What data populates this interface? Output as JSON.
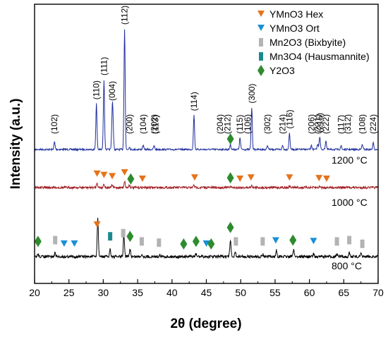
{
  "chart_data": {
    "type": "line",
    "xlabel": "2θ (degree)",
    "ylabel": "Intensity (a.u.)",
    "xlim": [
      20,
      70
    ],
    "x_ticks": [
      20,
      25,
      30,
      35,
      40,
      45,
      50,
      55,
      60,
      65,
      70
    ],
    "grid": false,
    "legend_position": "top-right",
    "legend": [
      {
        "name": "YMnO3 Hex",
        "marker": "down-triangle",
        "color": "#e5731a"
      },
      {
        "name": "YMnO3 Ort",
        "marker": "down-triangle",
        "color": "#1a8fd6"
      },
      {
        "name": "Mn2O3 (Bixbyite)",
        "marker": "rect",
        "color": "#b3b3b3"
      },
      {
        "name": "Mn3O4 (Hausmannite)",
        "marker": "rect",
        "color": "#1a8a8f"
      },
      {
        "name": "Y2O3",
        "marker": "diamond",
        "color": "#2e8b2e"
      }
    ],
    "series": [
      {
        "name": "1200 °C",
        "color": "#1f2f9e",
        "baseline": 0.0,
        "peaks": [
          [
            22.9,
            0.06
          ],
          [
            29.0,
            0.36
          ],
          [
            30.1,
            0.55
          ],
          [
            31.3,
            0.25
          ],
          [
            31.4,
            0.2
          ],
          [
            33.1,
            0.95
          ],
          [
            33.8,
            0.02
          ],
          [
            35.8,
            0.03
          ],
          [
            37.4,
            0.03
          ],
          [
            43.2,
            0.27
          ],
          [
            48.5,
            0.04
          ],
          [
            49.9,
            0.09
          ],
          [
            51.6,
            0.33
          ],
          [
            53.9,
            0.03
          ],
          [
            56.1,
            0.03
          ],
          [
            57.1,
            0.13
          ],
          [
            60.3,
            0.03
          ],
          [
            61.2,
            0.04
          ],
          [
            61.5,
            0.1
          ],
          [
            62.4,
            0.07
          ],
          [
            64.6,
            0.03
          ],
          [
            67.7,
            0.04
          ],
          [
            69.3,
            0.05
          ]
        ],
        "peak_labels": [
          {
            "x": 22.9,
            "label": "(102)"
          },
          {
            "x": 29.0,
            "label": "(110)"
          },
          {
            "x": 30.1,
            "label": "(111)"
          },
          {
            "x": 31.3,
            "label": "(004)"
          },
          {
            "x": 33.1,
            "label": "(112)"
          },
          {
            "x": 33.8,
            "label": "(200)"
          },
          {
            "x": 35.8,
            "label": "(104)"
          },
          {
            "x": 37.4,
            "label": "(202)"
          },
          {
            "x": 37.6,
            "label": "(113)"
          },
          {
            "x": 43.2,
            "label": "(114)"
          },
          {
            "x": 47.0,
            "label": "(204)"
          },
          {
            "x": 48.1,
            "label": "(212)"
          },
          {
            "x": 49.9,
            "label": "(115)"
          },
          {
            "x": 51.0,
            "label": "(106)"
          },
          {
            "x": 51.6,
            "label": "(300)"
          },
          {
            "x": 53.9,
            "label": "(302)"
          },
          {
            "x": 56.1,
            "label": "(214)"
          },
          {
            "x": 57.1,
            "label": "(116)"
          },
          {
            "x": 60.3,
            "label": "(206)"
          },
          {
            "x": 61.2,
            "label": "(221)"
          },
          {
            "x": 61.5,
            "label": "(215)"
          },
          {
            "x": 62.4,
            "label": "(222)"
          },
          {
            "x": 64.6,
            "label": "(117)"
          },
          {
            "x": 65.6,
            "label": "(312)"
          },
          {
            "x": 67.7,
            "label": "(108)"
          },
          {
            "x": 69.3,
            "label": "(224)"
          }
        ],
        "markers": [
          {
            "x": 48.5,
            "phase": "Y2O3"
          }
        ]
      },
      {
        "name": "1000 °C",
        "color": "#a01c22",
        "baseline": 0.0,
        "peaks": [
          [
            29.1,
            0.04
          ],
          [
            30.1,
            0.03
          ],
          [
            31.3,
            0.02
          ],
          [
            33.1,
            0.05
          ],
          [
            33.8,
            0.02
          ],
          [
            43.2,
            0.02
          ],
          [
            48.5,
            0.01
          ],
          [
            51.6,
            0.02
          ],
          [
            57.1,
            0.01
          ],
          [
            61.5,
            0.01
          ]
        ],
        "markers": [
          {
            "x": 29.1,
            "phase": "YMnO3 Hex"
          },
          {
            "x": 30.1,
            "phase": "YMnO3 Hex"
          },
          {
            "x": 31.3,
            "phase": "YMnO3 Hex"
          },
          {
            "x": 33.1,
            "phase": "YMnO3 Hex"
          },
          {
            "x": 34.0,
            "phase": "Y2O3"
          },
          {
            "x": 35.7,
            "phase": "YMnO3 Hex"
          },
          {
            "x": 43.3,
            "phase": "YMnO3 Hex"
          },
          {
            "x": 48.5,
            "phase": "Y2O3"
          },
          {
            "x": 49.9,
            "phase": "YMnO3 Hex"
          },
          {
            "x": 51.5,
            "phase": "YMnO3 Hex"
          },
          {
            "x": 57.1,
            "phase": "YMnO3 Hex"
          },
          {
            "x": 61.4,
            "phase": "YMnO3 Hex"
          },
          {
            "x": 62.5,
            "phase": "YMnO3 Hex"
          }
        ]
      },
      {
        "name": "800 °C",
        "color": "#000000",
        "baseline": 0.0,
        "peaks": [
          [
            20.5,
            0.02
          ],
          [
            23.0,
            0.03
          ],
          [
            29.2,
            0.3
          ],
          [
            31.0,
            0.06
          ],
          [
            33.0,
            0.17
          ],
          [
            33.9,
            0.06
          ],
          [
            35.6,
            0.02
          ],
          [
            38.2,
            0.02
          ],
          [
            43.5,
            0.02
          ],
          [
            48.5,
            0.13
          ],
          [
            49.2,
            0.04
          ],
          [
            53.2,
            0.02
          ],
          [
            55.2,
            0.05
          ],
          [
            57.7,
            0.06
          ],
          [
            60.6,
            0.02
          ],
          [
            64.0,
            0.02
          ],
          [
            65.8,
            0.03
          ],
          [
            67.5,
            0.02
          ]
        ],
        "markers": [
          {
            "x": 20.5,
            "phase": "Y2O3"
          },
          {
            "x": 23.0,
            "phase": "Mn2O3 (Bixbyite)"
          },
          {
            "x": 24.3,
            "phase": "YMnO3 Ort"
          },
          {
            "x": 25.8,
            "phase": "YMnO3 Ort"
          },
          {
            "x": 29.1,
            "phase": "YMnO3 Hex"
          },
          {
            "x": 31.0,
            "phase": "Mn3O4 (Hausmannite)"
          },
          {
            "x": 32.9,
            "phase": "Mn2O3 (Bixbyite)"
          },
          {
            "x": 33.9,
            "phase": "Y2O3"
          },
          {
            "x": 35.6,
            "phase": "Mn2O3 (Bixbyite)"
          },
          {
            "x": 38.1,
            "phase": "Mn2O3 (Bixbyite)"
          },
          {
            "x": 41.7,
            "phase": "Y2O3"
          },
          {
            "x": 43.5,
            "phase": "Y2O3"
          },
          {
            "x": 45.0,
            "phase": "YMnO3 Ort"
          },
          {
            "x": 45.7,
            "phase": "Y2O3"
          },
          {
            "x": 48.5,
            "phase": "Y2O3"
          },
          {
            "x": 49.3,
            "phase": "Mn2O3 (Bixbyite)"
          },
          {
            "x": 53.2,
            "phase": "Mn2O3 (Bixbyite)"
          },
          {
            "x": 55.1,
            "phase": "YMnO3 Ort"
          },
          {
            "x": 57.6,
            "phase": "Y2O3"
          },
          {
            "x": 60.6,
            "phase": "YMnO3 Ort"
          },
          {
            "x": 64.0,
            "phase": "Mn2O3 (Bixbyite)"
          },
          {
            "x": 65.8,
            "phase": "Mn2O3 (Bixbyite)"
          },
          {
            "x": 67.7,
            "phase": "Mn2O3 (Bixbyite)"
          }
        ]
      }
    ]
  }
}
